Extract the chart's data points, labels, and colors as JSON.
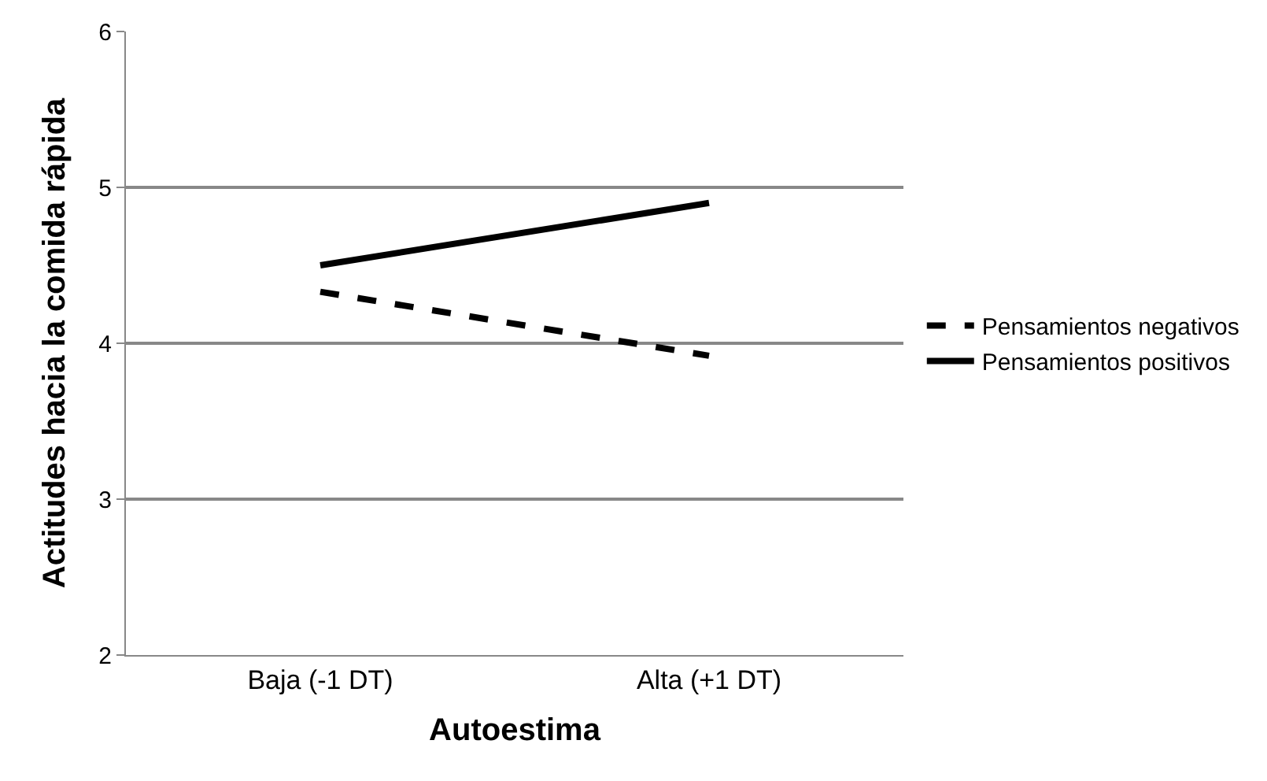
{
  "chart_data": {
    "type": "line",
    "xlabel": "Autoestima",
    "ylabel": "Actitudes hacia la comida rápida",
    "categories": [
      "Baja (-1 DT)",
      "Alta (+1 DT)"
    ],
    "series": [
      {
        "name": "Pensamientos negativos",
        "color": "#000000",
        "line_style": "dashed",
        "values": [
          4.33,
          3.92
        ]
      },
      {
        "name": "Pensamientos positivos",
        "color": "#000000",
        "line_style": "solid",
        "values": [
          4.5,
          4.9
        ]
      }
    ],
    "ylim": [
      2,
      6
    ],
    "yticks": [
      2,
      3,
      4,
      5,
      6
    ],
    "grid": "y",
    "legend": "right",
    "marker": "none"
  }
}
